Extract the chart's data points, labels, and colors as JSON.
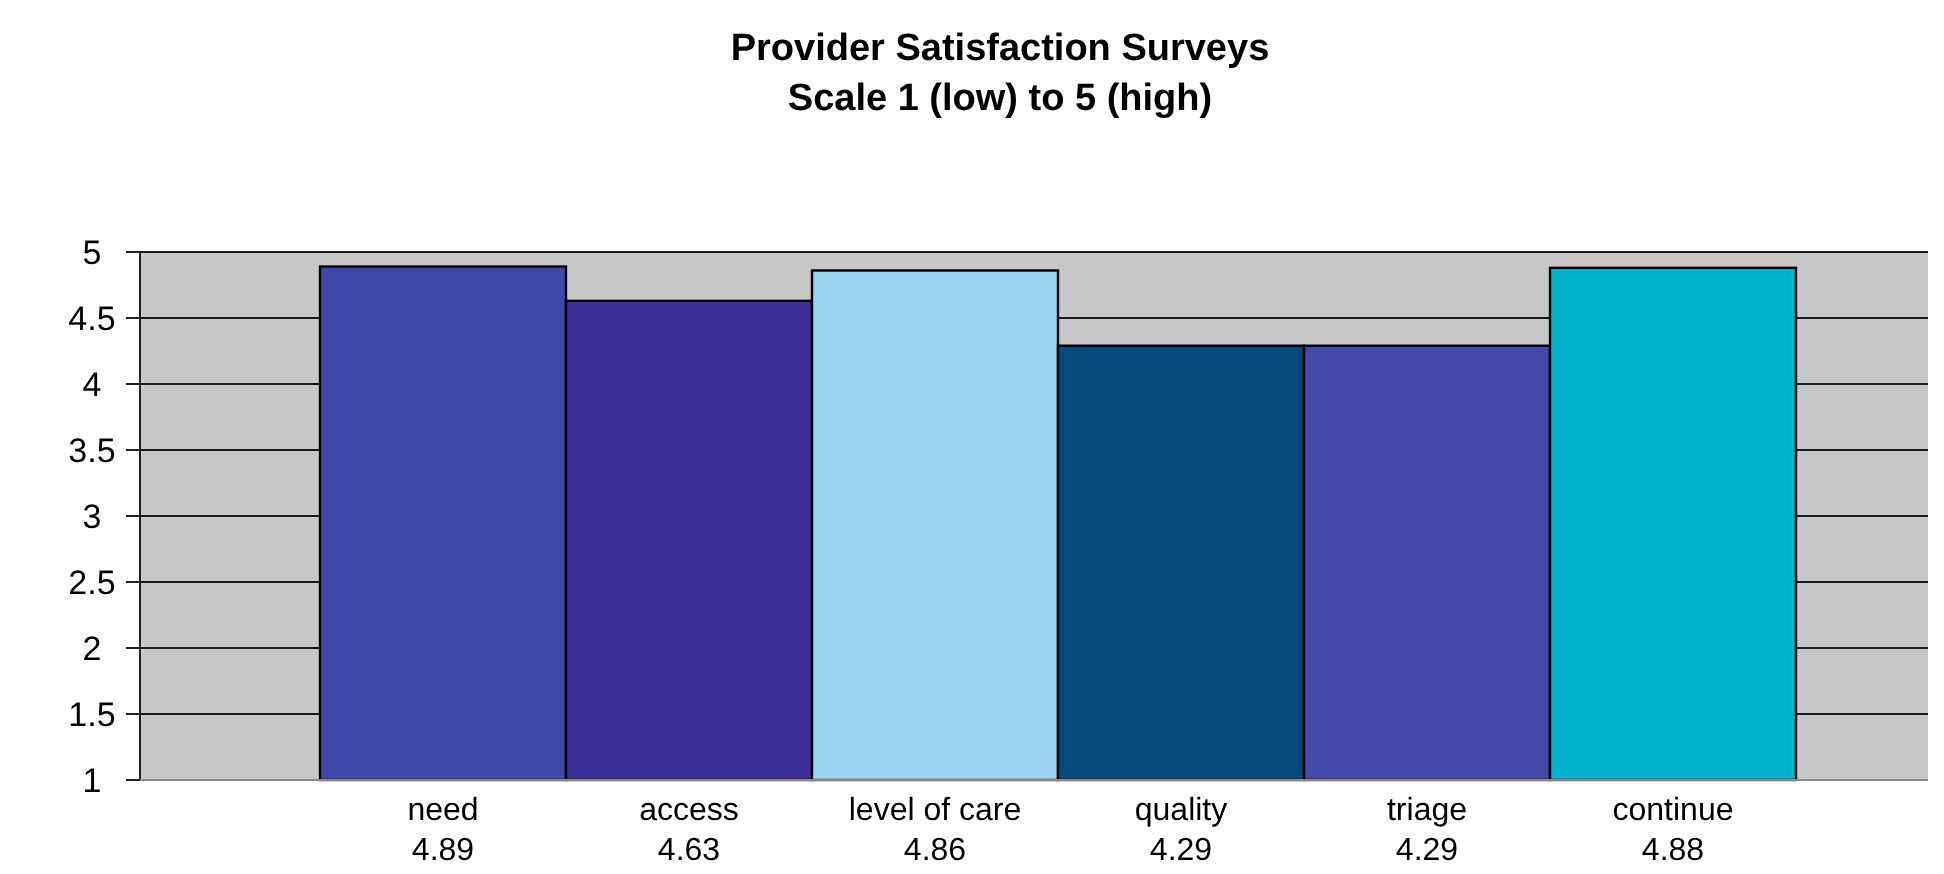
{
  "chart_data": {
    "type": "bar",
    "title": "Provider Satisfaction Surveys",
    "subtitle": "Scale 1 (low) to 5 (high)",
    "categories": [
      "need",
      "access",
      "level of care",
      "quality",
      "triage",
      "continue"
    ],
    "values": [
      4.89,
      4.63,
      4.86,
      4.29,
      4.29,
      4.88
    ],
    "colors": [
      "#3f48a8",
      "#3b2f95",
      "#99d3ee",
      "#054c7c",
      "#4448a8",
      "#00b4cb"
    ],
    "ylim": [
      1,
      5
    ],
    "yticks": [
      1,
      1.5,
      2,
      2.5,
      3,
      3.5,
      4,
      4.5,
      5
    ],
    "grid": "y",
    "data_labels": true
  }
}
